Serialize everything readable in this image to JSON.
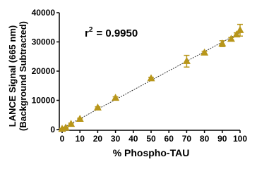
{
  "chart_data": {
    "type": "scatter",
    "x_label": "% Phospho-TAU",
    "y_label": [
      "LANCE Signal (665 nm)",
      "(Background Subtracted)"
    ],
    "annotation": {
      "base": "r",
      "sup": "2",
      "text": "= 0.9950"
    },
    "x": [
      0,
      2,
      5,
      10,
      20,
      30,
      50,
      70,
      80,
      90,
      95,
      98,
      100
    ],
    "values": [
      200,
      600,
      1900,
      3600,
      7500,
      10800,
      17500,
      23400,
      26300,
      29400,
      31000,
      32500,
      34000
    ],
    "errors": [
      200,
      200,
      300,
      300,
      300,
      400,
      400,
      2000,
      500,
      1000,
      500,
      600,
      2000
    ],
    "color": "#b8961a",
    "trendline": true,
    "xlim": [
      0,
      100
    ],
    "xticks": [
      0,
      10,
      20,
      30,
      40,
      50,
      60,
      70,
      80,
      90,
      100
    ],
    "ylim": [
      0,
      40000
    ],
    "yticks": [
      0,
      10000,
      20000,
      30000,
      40000
    ]
  }
}
